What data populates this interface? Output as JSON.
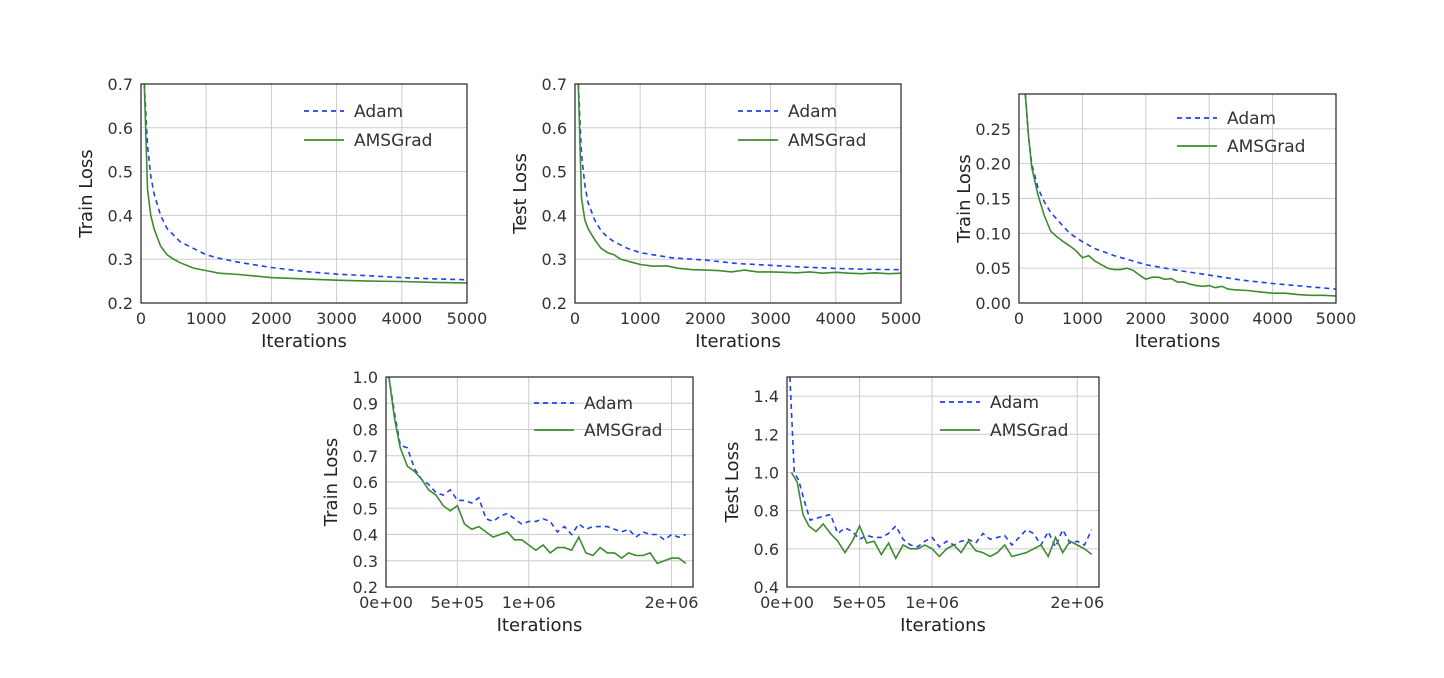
{
  "chart_data": [
    {
      "type": "line",
      "xlabel": "Iterations",
      "ylabel": "Train Loss",
      "xlim": [
        0,
        5000
      ],
      "ylim": [
        0.2,
        0.7
      ],
      "xticks": [
        0,
        1000,
        2000,
        3000,
        4000,
        5000
      ],
      "xtick_labels": [
        "0",
        "1000",
        "2000",
        "3000",
        "4000",
        "5000"
      ],
      "yticks": [
        0.2,
        0.3,
        0.4,
        0.5,
        0.6,
        0.7
      ],
      "ytick_labels": [
        "0.2",
        "0.3",
        "0.4",
        "0.5",
        "0.6",
        "0.7"
      ],
      "grid": true,
      "legend": "upper-right",
      "series": [
        {
          "name": "Adam",
          "color": "#1f3ff0",
          "style": "dashed",
          "x": [
            50,
            100,
            150,
            200,
            300,
            400,
            500,
            600,
            800,
            1000,
            1200,
            1500,
            2000,
            2500,
            3000,
            3500,
            4000,
            4500,
            5000
          ],
          "y": [
            0.7,
            0.56,
            0.49,
            0.45,
            0.4,
            0.37,
            0.355,
            0.34,
            0.325,
            0.31,
            0.302,
            0.293,
            0.281,
            0.272,
            0.266,
            0.262,
            0.258,
            0.255,
            0.253
          ]
        },
        {
          "name": "AMSGrad",
          "color": "#3d8b2f",
          "style": "solid",
          "x": [
            50,
            100,
            150,
            200,
            300,
            400,
            500,
            600,
            800,
            1000,
            1200,
            1500,
            2000,
            2500,
            3000,
            3500,
            4000,
            4500,
            5000
          ],
          "y": [
            0.7,
            0.46,
            0.4,
            0.37,
            0.33,
            0.31,
            0.3,
            0.292,
            0.28,
            0.274,
            0.268,
            0.265,
            0.258,
            0.255,
            0.252,
            0.25,
            0.249,
            0.247,
            0.246
          ]
        }
      ]
    },
    {
      "type": "line",
      "xlabel": "Iterations",
      "ylabel": "Test Loss",
      "xlim": [
        0,
        5000
      ],
      "ylim": [
        0.2,
        0.7
      ],
      "xticks": [
        0,
        1000,
        2000,
        3000,
        4000,
        5000
      ],
      "xtick_labels": [
        "0",
        "1000",
        "2000",
        "3000",
        "4000",
        "5000"
      ],
      "yticks": [
        0.2,
        0.3,
        0.4,
        0.5,
        0.6,
        0.7
      ],
      "ytick_labels": [
        "0.2",
        "0.3",
        "0.4",
        "0.5",
        "0.6",
        "0.7"
      ],
      "grid": true,
      "legend": "upper-right",
      "series": [
        {
          "name": "Adam",
          "color": "#1f3ff0",
          "style": "dashed",
          "x": [
            50,
            100,
            150,
            200,
            300,
            400,
            500,
            600,
            800,
            1000,
            1200,
            1500,
            2000,
            2500,
            3000,
            3500,
            4000,
            4500,
            5000
          ],
          "y": [
            0.7,
            0.54,
            0.47,
            0.43,
            0.39,
            0.365,
            0.35,
            0.34,
            0.325,
            0.315,
            0.31,
            0.303,
            0.298,
            0.29,
            0.286,
            0.282,
            0.279,
            0.277,
            0.276
          ]
        },
        {
          "name": "AMSGrad",
          "color": "#3d8b2f",
          "style": "solid",
          "x": [
            50,
            100,
            150,
            200,
            300,
            400,
            500,
            600,
            700,
            800,
            1000,
            1200,
            1400,
            1600,
            1800,
            2000,
            2200,
            2400,
            2600,
            2800,
            3000,
            3200,
            3400,
            3600,
            3800,
            4000,
            4200,
            4400,
            4600,
            4800,
            5000
          ],
          "y": [
            0.7,
            0.44,
            0.39,
            0.37,
            0.345,
            0.325,
            0.315,
            0.31,
            0.3,
            0.296,
            0.288,
            0.284,
            0.285,
            0.279,
            0.276,
            0.275,
            0.274,
            0.271,
            0.275,
            0.271,
            0.271,
            0.27,
            0.269,
            0.271,
            0.268,
            0.27,
            0.268,
            0.267,
            0.269,
            0.267,
            0.268
          ]
        }
      ]
    },
    {
      "type": "line",
      "xlabel": "Iterations",
      "ylabel": "Train Loss",
      "xlim": [
        0,
        5000
      ],
      "ylim": [
        0,
        0.3
      ],
      "xticks": [
        0,
        1000,
        2000,
        3000,
        4000,
        5000
      ],
      "xtick_labels": [
        "0",
        "1000",
        "2000",
        "3000",
        "4000",
        "5000"
      ],
      "yticks": [
        0,
        0.05,
        0.1,
        0.15,
        0.2,
        0.25
      ],
      "ytick_labels": [
        "0.00",
        "0.05",
        "0.10",
        "0.15",
        "0.20",
        "0.25"
      ],
      "grid": true,
      "legend": "upper-right",
      "series": [
        {
          "name": "Adam",
          "color": "#1f3ff0",
          "style": "dashed",
          "x": [
            100,
            150,
            200,
            300,
            400,
            500,
            600,
            800,
            1000,
            1200,
            1500,
            2000,
            2500,
            3000,
            3500,
            4000,
            4500,
            5000
          ],
          "y": [
            0.3,
            0.24,
            0.2,
            0.165,
            0.145,
            0.13,
            0.12,
            0.1,
            0.088,
            0.078,
            0.068,
            0.055,
            0.047,
            0.04,
            0.033,
            0.028,
            0.024,
            0.02
          ]
        },
        {
          "name": "AMSGrad",
          "color": "#3d8b2f",
          "style": "solid",
          "x": [
            100,
            150,
            200,
            300,
            400,
            500,
            600,
            700,
            800,
            900,
            1000,
            1100,
            1200,
            1300,
            1400,
            1500,
            1600,
            1700,
            1800,
            1900,
            2000,
            2100,
            2200,
            2300,
            2400,
            2500,
            2600,
            2700,
            2800,
            2900,
            3000,
            3100,
            3200,
            3300,
            3400,
            3600,
            3800,
            4000,
            4200,
            4400,
            4600,
            4800,
            5000
          ],
          "y": [
            0.3,
            0.24,
            0.195,
            0.155,
            0.125,
            0.103,
            0.095,
            0.088,
            0.082,
            0.075,
            0.065,
            0.068,
            0.06,
            0.055,
            0.05,
            0.048,
            0.048,
            0.05,
            0.047,
            0.04,
            0.034,
            0.037,
            0.037,
            0.034,
            0.035,
            0.03,
            0.03,
            0.027,
            0.025,
            0.024,
            0.025,
            0.022,
            0.024,
            0.02,
            0.019,
            0.018,
            0.016,
            0.014,
            0.014,
            0.012,
            0.011,
            0.011,
            0.01
          ]
        }
      ]
    },
    {
      "type": "line",
      "xlabel": "Iterations",
      "ylabel": "Train Loss",
      "xlim": [
        0,
        2150000
      ],
      "ylim": [
        0.2,
        1.0
      ],
      "xticks": [
        0,
        500000,
        1000000,
        2000000
      ],
      "xtick_labels": [
        "0e+00",
        "5e+05",
        "1e+06",
        "2e+06"
      ],
      "yticks": [
        0.2,
        0.3,
        0.4,
        0.5,
        0.6,
        0.7,
        0.8,
        0.9,
        1.0
      ],
      "ytick_labels": [
        "0.2",
        "0.3",
        "0.4",
        "0.5",
        "0.6",
        "0.7",
        "0.8",
        "0.9",
        "1.0"
      ],
      "grid": true,
      "legend": "upper-right",
      "series": [
        {
          "name": "Adam",
          "color": "#1f3ff0",
          "style": "dashed",
          "x": [
            20000,
            60000,
            100000,
            150000,
            200000,
            250000,
            300000,
            350000,
            400000,
            450000,
            500000,
            550000,
            600000,
            650000,
            700000,
            750000,
            800000,
            850000,
            900000,
            950000,
            1000000,
            1050000,
            1100000,
            1150000,
            1200000,
            1250000,
            1300000,
            1350000,
            1400000,
            1450000,
            1500000,
            1550000,
            1600000,
            1650000,
            1700000,
            1750000,
            1800000,
            1850000,
            1900000,
            1950000,
            2000000,
            2050000,
            2100000
          ],
          "y": [
            1.0,
            0.86,
            0.74,
            0.73,
            0.65,
            0.61,
            0.59,
            0.56,
            0.55,
            0.57,
            0.53,
            0.53,
            0.52,
            0.54,
            0.46,
            0.45,
            0.47,
            0.48,
            0.46,
            0.44,
            0.45,
            0.45,
            0.46,
            0.45,
            0.41,
            0.43,
            0.4,
            0.44,
            0.42,
            0.43,
            0.43,
            0.43,
            0.42,
            0.41,
            0.42,
            0.39,
            0.41,
            0.4,
            0.4,
            0.38,
            0.4,
            0.39,
            0.4
          ]
        },
        {
          "name": "AMSGrad",
          "color": "#3d8b2f",
          "style": "solid",
          "x": [
            20000,
            60000,
            100000,
            150000,
            200000,
            250000,
            300000,
            350000,
            400000,
            450000,
            500000,
            550000,
            600000,
            650000,
            700000,
            750000,
            800000,
            850000,
            900000,
            950000,
            1000000,
            1050000,
            1100000,
            1150000,
            1200000,
            1250000,
            1300000,
            1350000,
            1400000,
            1450000,
            1500000,
            1550000,
            1600000,
            1650000,
            1700000,
            1750000,
            1800000,
            1850000,
            1900000,
            1950000,
            2000000,
            2050000,
            2100000
          ],
          "y": [
            1.0,
            0.84,
            0.73,
            0.66,
            0.64,
            0.61,
            0.57,
            0.55,
            0.51,
            0.49,
            0.51,
            0.44,
            0.42,
            0.43,
            0.41,
            0.39,
            0.4,
            0.41,
            0.38,
            0.38,
            0.36,
            0.34,
            0.36,
            0.33,
            0.35,
            0.35,
            0.34,
            0.39,
            0.33,
            0.32,
            0.35,
            0.33,
            0.33,
            0.31,
            0.33,
            0.32,
            0.32,
            0.33,
            0.29,
            0.3,
            0.31,
            0.31,
            0.29
          ]
        }
      ]
    },
    {
      "type": "line",
      "xlabel": "Iterations",
      "ylabel": "Test Loss",
      "xlim": [
        0,
        2150000
      ],
      "ylim": [
        0.4,
        1.5
      ],
      "xticks": [
        0,
        500000,
        1000000,
        2000000
      ],
      "xtick_labels": [
        "0e+00",
        "5e+05",
        "1e+06",
        "2e+06"
      ],
      "yticks": [
        0.4,
        0.6,
        0.8,
        1.0,
        1.2,
        1.4
      ],
      "ytick_labels": [
        "0.4",
        "0.6",
        "0.8",
        "1.0",
        "1.2",
        "1.4"
      ],
      "grid": true,
      "legend": "upper-right",
      "series": [
        {
          "name": "Adam",
          "color": "#1f3ff0",
          "style": "dashed",
          "x": [
            20000,
            50000,
            80000,
            120000,
            160000,
            200000,
            250000,
            300000,
            350000,
            400000,
            450000,
            500000,
            550000,
            600000,
            650000,
            700000,
            750000,
            800000,
            850000,
            900000,
            950000,
            1000000,
            1050000,
            1100000,
            1150000,
            1200000,
            1250000,
            1300000,
            1350000,
            1400000,
            1450000,
            1500000,
            1550000,
            1600000,
            1650000,
            1700000,
            1750000,
            1800000,
            1850000,
            1900000,
            1950000,
            2000000,
            2050000,
            2100000
          ],
          "y": [
            1.5,
            1.0,
            0.96,
            0.85,
            0.75,
            0.76,
            0.77,
            0.78,
            0.68,
            0.71,
            0.69,
            0.65,
            0.67,
            0.66,
            0.66,
            0.68,
            0.72,
            0.65,
            0.62,
            0.61,
            0.64,
            0.66,
            0.61,
            0.64,
            0.62,
            0.64,
            0.65,
            0.63,
            0.68,
            0.65,
            0.66,
            0.67,
            0.62,
            0.66,
            0.7,
            0.68,
            0.62,
            0.69,
            0.61,
            0.7,
            0.63,
            0.64,
            0.62,
            0.7
          ]
        },
        {
          "name": "AMSGrad",
          "color": "#3d8b2f",
          "style": "solid",
          "x": [
            30000,
            70000,
            110000,
            150000,
            200000,
            250000,
            300000,
            350000,
            400000,
            450000,
            500000,
            550000,
            600000,
            650000,
            700000,
            750000,
            800000,
            850000,
            900000,
            950000,
            1000000,
            1050000,
            1100000,
            1150000,
            1200000,
            1250000,
            1300000,
            1350000,
            1400000,
            1450000,
            1500000,
            1550000,
            1600000,
            1650000,
            1700000,
            1750000,
            1800000,
            1850000,
            1900000,
            1950000,
            2000000,
            2050000,
            2100000
          ],
          "y": [
            1.0,
            0.95,
            0.78,
            0.72,
            0.69,
            0.73,
            0.68,
            0.64,
            0.58,
            0.64,
            0.72,
            0.63,
            0.64,
            0.57,
            0.63,
            0.55,
            0.62,
            0.6,
            0.6,
            0.62,
            0.6,
            0.56,
            0.6,
            0.62,
            0.58,
            0.64,
            0.59,
            0.58,
            0.56,
            0.58,
            0.62,
            0.56,
            0.57,
            0.58,
            0.6,
            0.62,
            0.56,
            0.66,
            0.58,
            0.64,
            0.62,
            0.6,
            0.57
          ]
        }
      ]
    }
  ]
}
